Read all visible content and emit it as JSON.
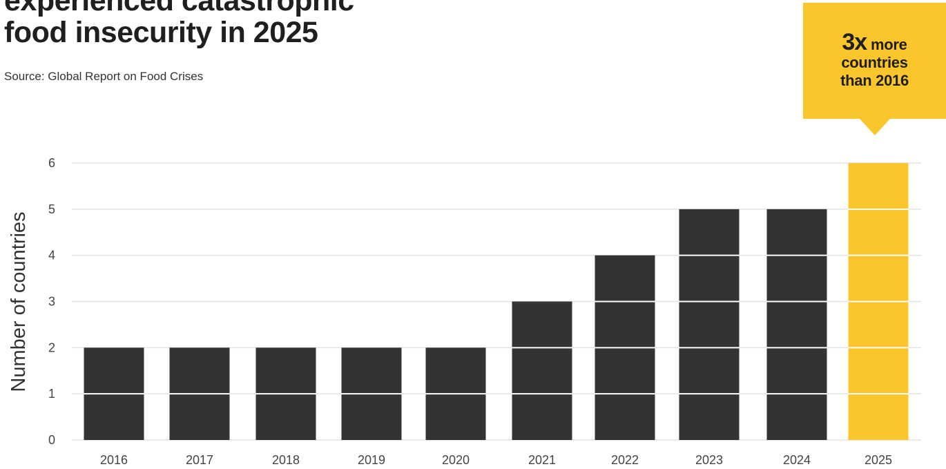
{
  "title": {
    "line1": "experienced catastrophic",
    "line2": "food insecurity in 2025"
  },
  "source": "Source: Global Report on Food Crises",
  "callout": {
    "big": "3x",
    "rest1": " more",
    "line2": "countries",
    "line3": "than 2016"
  },
  "colors": {
    "bar": "#333333",
    "highlight": "#fbc52c",
    "grid": "#e2e2e2"
  },
  "chart_data": {
    "type": "bar",
    "categories": [
      "2016",
      "2017",
      "2018",
      "2019",
      "2020",
      "2021",
      "2022",
      "2023",
      "2024",
      "2025"
    ],
    "values": [
      2,
      2,
      2,
      2,
      2,
      3,
      4,
      5,
      5,
      6
    ],
    "highlight_category": "2025",
    "ylabel": "Number of countries",
    "xlabel": "",
    "ylim": [
      0,
      6
    ],
    "yticks": [
      0,
      1,
      2,
      3,
      4,
      5,
      6
    ],
    "grid": true
  }
}
